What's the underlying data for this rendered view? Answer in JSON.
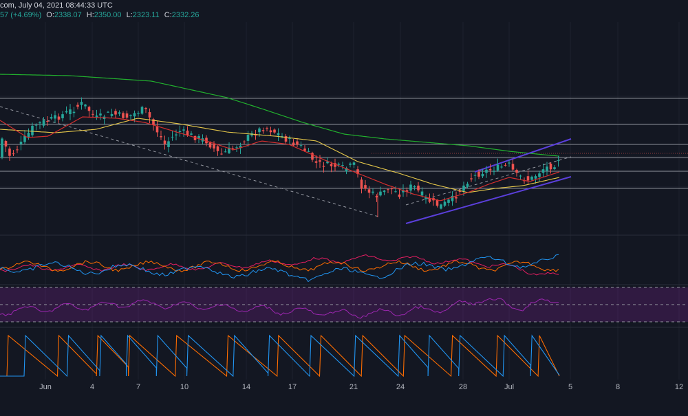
{
  "header": {
    "line1_text": "com, July 04, 2021 08:44:33 UTC",
    "change_text": "57 (+4.69%)",
    "open_label": "O:",
    "open_value": "2338.07",
    "high_label": "H:",
    "high_value": "2350.00",
    "low_label": "L:",
    "low_value": "2323.11",
    "close_label": "C:",
    "close_value": "2332.26"
  },
  "x_axis": {
    "ticks": [
      "Jun",
      "4",
      "7",
      "10",
      "14",
      "17",
      "21",
      "24",
      "28",
      "Jul",
      "5",
      "8",
      "12"
    ]
  },
  "colors": {
    "background": "#131722",
    "candle_up": "#26a69a",
    "candle_down": "#ef5350",
    "ma_long": "#22b02e",
    "ma_mid": "#e6c84a",
    "ma_short": "#d32f2f",
    "channel": "#5b3fdc",
    "rsi": "#9c27b0",
    "osc_blue": "#2196f3",
    "osc_orange": "#ff6d00",
    "osc_pink": "#e91e63"
  },
  "chart_data": {
    "type": "candlestick",
    "title": "",
    "xlabel": "",
    "ylabel": "",
    "bars": 100,
    "timeframe": "8h",
    "x_tick_labels": [
      "Jun",
      "4",
      "7",
      "10",
      "14",
      "17",
      "21",
      "24",
      "28",
      "Jul",
      "5",
      "8",
      "12"
    ],
    "close_path": [
      2600,
      2560,
      2440,
      2460,
      2520,
      2620,
      2680,
      2720,
      2740,
      2780,
      2760,
      2700,
      2720,
      2780,
      2730,
      2680,
      2660,
      2700,
      2660,
      2640,
      2520,
      2500,
      2540,
      2560,
      2580,
      2540,
      2500,
      2460,
      2420,
      2400,
      2440,
      2480,
      2540,
      2590,
      2570,
      2520,
      2480,
      2500,
      2480,
      2450,
      2420,
      2380,
      2340,
      2300,
      2240,
      2220,
      2180,
      2140,
      2100,
      2080,
      2000,
      1960,
      1900,
      1880,
      1900,
      1960,
      1940,
      1880,
      1860,
      1840,
      1920,
      2000,
      2050,
      2120,
      2180,
      2200,
      2230,
      2180,
      2140,
      2160,
      2260,
      2300,
      2320,
      2290,
      2260,
      2240,
      2200,
      2210,
      2240,
      2260,
      2300,
      2332.26
    ],
    "last_bar": {
      "open": 2338.07,
      "high": 2350.0,
      "low": 2323.11,
      "close": 2332.26
    },
    "moving_averages": [
      {
        "color": "#22b02e",
        "description": "long-term moving average, declining"
      },
      {
        "color": "#e6c84a",
        "description": "medium moving average"
      },
      {
        "color": "#d32f2f",
        "description": "short moving average"
      }
    ],
    "channel": {
      "color": "#5b3fdc",
      "description": "ascending parallel channel"
    },
    "horizontal_levels": 7,
    "lower_panes": [
      {
        "name": "",
        "type": "oscillator",
        "series_colors": [
          "#2196f3",
          "#ff6d00",
          "#e91e63"
        ]
      },
      {
        "name": "",
        "type": "rsi",
        "color": "#9c27b0",
        "band": "shaded"
      },
      {
        "name": "",
        "type": "aroon",
        "series_colors": [
          "#ff6d00",
          "#2196f3"
        ]
      }
    ]
  }
}
